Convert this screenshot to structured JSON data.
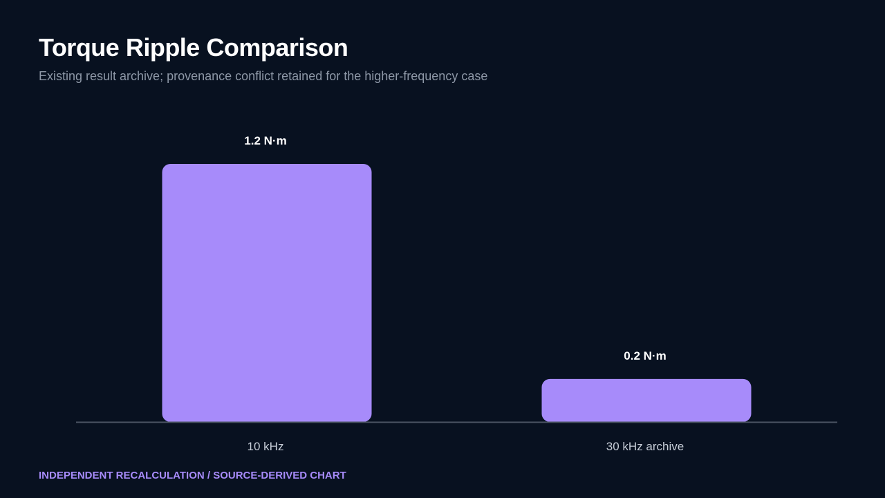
{
  "page": {
    "title": "Torque Ripple Comparison",
    "subtitle": "Existing result archive; provenance conflict retained for the higher-frequency case",
    "footer": "INDEPENDENT RECALCULATION / SOURCE-DERIVED CHART"
  },
  "chart_data": {
    "type": "bar",
    "categories": [
      "10 kHz",
      "30 kHz archive"
    ],
    "values": [
      1.2,
      0.2
    ],
    "data_labels": [
      "1.2 N·m",
      "0.2 N·m"
    ],
    "title": "Torque Ripple Comparison",
    "subtitle": "Existing result archive; provenance conflict retained for the higher-frequency case",
    "ylim": [
      0,
      1.2
    ],
    "grid": false,
    "legend": "none",
    "colors": {
      "bar": "#a78bfa",
      "axis": "#4b5563",
      "background": "#081120"
    }
  }
}
